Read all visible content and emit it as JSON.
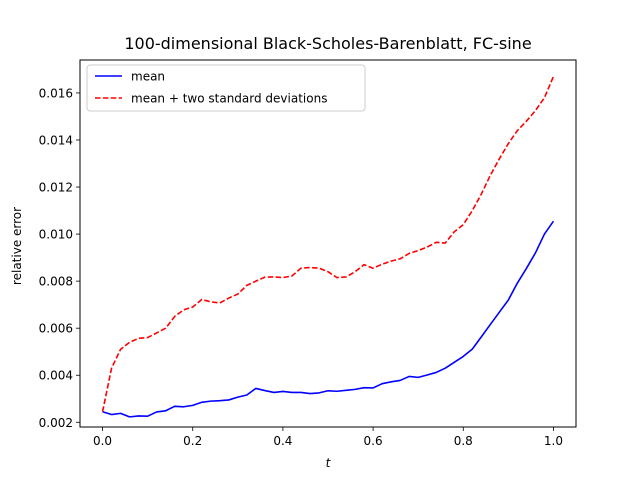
{
  "chart_data": {
    "type": "line",
    "title": "100-dimensional Black-Scholes-Barenblatt, FC-sine",
    "xlabel": "t",
    "ylabel": "relative error",
    "xlim": [
      -0.05,
      1.05
    ],
    "ylim": [
      0.0018,
      0.0174
    ],
    "xticks": [
      0.0,
      0.2,
      0.4,
      0.6,
      0.8,
      1.0
    ],
    "xtick_labels": [
      "0.0",
      "0.2",
      "0.4",
      "0.6",
      "0.8",
      "1.0"
    ],
    "yticks": [
      0.002,
      0.004,
      0.006,
      0.008,
      0.01,
      0.012,
      0.014,
      0.016
    ],
    "ytick_labels": [
      "0.002",
      "0.004",
      "0.006",
      "0.008",
      "0.010",
      "0.012",
      "0.014",
      "0.016"
    ],
    "grid": false,
    "legend_position": "upper-left",
    "series": [
      {
        "name": "mean",
        "color": "#0000ff",
        "linestyle": "solid",
        "x": [
          0.0,
          0.02,
          0.04,
          0.06,
          0.08,
          0.1,
          0.12,
          0.14,
          0.16,
          0.18,
          0.2,
          0.22,
          0.24,
          0.26,
          0.28,
          0.3,
          0.32,
          0.34,
          0.36,
          0.38,
          0.4,
          0.42,
          0.44,
          0.46,
          0.48,
          0.5,
          0.52,
          0.54,
          0.56,
          0.58,
          0.6,
          0.62,
          0.64,
          0.66,
          0.68,
          0.7,
          0.72,
          0.74,
          0.76,
          0.78,
          0.8,
          0.82,
          0.84,
          0.86,
          0.88,
          0.9,
          0.92,
          0.94,
          0.96,
          0.98,
          1.0
        ],
        "y": [
          0.00245,
          0.00233,
          0.00238,
          0.00223,
          0.00227,
          0.00226,
          0.00244,
          0.00249,
          0.00268,
          0.00266,
          0.00272,
          0.00285,
          0.0029,
          0.00292,
          0.00295,
          0.00307,
          0.00316,
          0.00344,
          0.00335,
          0.00327,
          0.00331,
          0.00327,
          0.00327,
          0.00322,
          0.00325,
          0.00334,
          0.00332,
          0.00336,
          0.0034,
          0.00347,
          0.00346,
          0.00364,
          0.00372,
          0.00378,
          0.00395,
          0.00391,
          0.00401,
          0.00412,
          0.0043,
          0.00455,
          0.0048,
          0.00511,
          0.00563,
          0.00616,
          0.00668,
          0.0072,
          0.00792,
          0.00854,
          0.0092,
          0.01,
          0.01055
        ]
      },
      {
        "name": "mean + two standard deviations",
        "color": "#ff0000",
        "linestyle": "dashed",
        "x": [
          0.0,
          0.02,
          0.04,
          0.06,
          0.08,
          0.1,
          0.12,
          0.14,
          0.16,
          0.18,
          0.2,
          0.22,
          0.24,
          0.26,
          0.28,
          0.3,
          0.32,
          0.34,
          0.36,
          0.38,
          0.4,
          0.42,
          0.44,
          0.46,
          0.48,
          0.5,
          0.52,
          0.54,
          0.56,
          0.58,
          0.6,
          0.62,
          0.64,
          0.66,
          0.68,
          0.7,
          0.72,
          0.74,
          0.76,
          0.78,
          0.8,
          0.82,
          0.84,
          0.86,
          0.88,
          0.9,
          0.92,
          0.94,
          0.96,
          0.98,
          1.0
        ],
        "y": [
          0.00245,
          0.0043,
          0.0051,
          0.0054,
          0.00557,
          0.0056,
          0.0058,
          0.006,
          0.0065,
          0.00678,
          0.0069,
          0.00722,
          0.00712,
          0.00707,
          0.00728,
          0.00745,
          0.00782,
          0.008,
          0.00817,
          0.00818,
          0.00815,
          0.00822,
          0.00855,
          0.00858,
          0.00855,
          0.0084,
          0.00815,
          0.00818,
          0.0084,
          0.0087,
          0.00855,
          0.00872,
          0.00885,
          0.00895,
          0.00918,
          0.0093,
          0.00945,
          0.00965,
          0.00962,
          0.0101,
          0.0104,
          0.011,
          0.0117,
          0.0125,
          0.0132,
          0.01385,
          0.0144,
          0.0148,
          0.01525,
          0.0158,
          0.0167
        ]
      }
    ]
  }
}
